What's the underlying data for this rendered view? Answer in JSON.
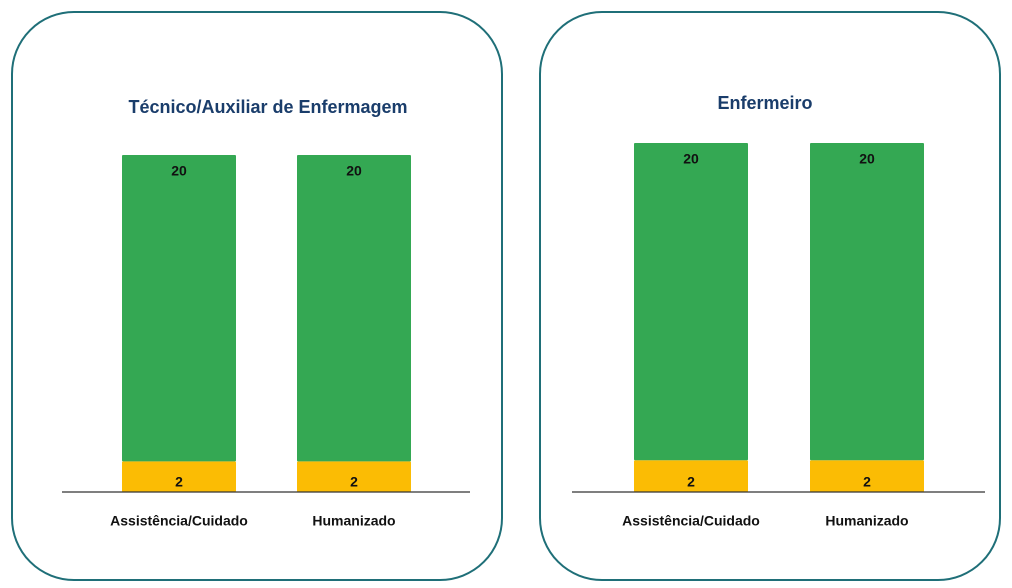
{
  "chart_data": [
    {
      "type": "bar",
      "stacked": true,
      "title": "Técnico/Auxiliar de Enfermagem",
      "categories": [
        "Assistência/Cuidado",
        "Humanizado"
      ],
      "series": [
        {
          "color": "#fbbc04",
          "values": [
            2,
            2
          ]
        },
        {
          "color": "#34a853",
          "values": [
            20,
            20
          ]
        }
      ]
    },
    {
      "type": "bar",
      "stacked": true,
      "title": "Enfermeiro",
      "categories": [
        "Assistência/Cuidado",
        "Humanizado"
      ],
      "series": [
        {
          "color": "#fbbc04",
          "values": [
            2,
            2
          ]
        },
        {
          "color": "#34a853",
          "values": [
            20,
            20
          ]
        }
      ]
    }
  ]
}
